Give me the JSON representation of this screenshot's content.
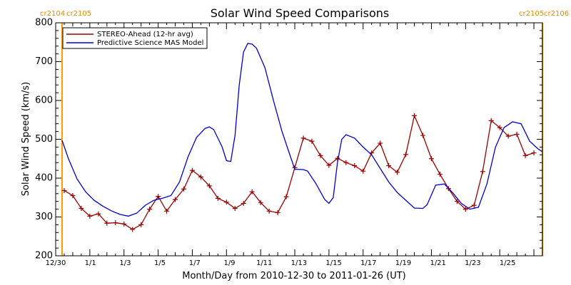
{
  "chart_data": {
    "type": "line",
    "title": "Solar Wind Speed Comparisons",
    "xlabel": "Month/Day from 2010-12-30 to 2011-01-26 (UT)",
    "ylabel": "Solar Wind Speed (km/s)",
    "ylim": [
      200,
      800
    ],
    "xlim": [
      "2010-12-30",
      "2011-01-27 12:00"
    ],
    "x_tick_labels": [
      "12/30",
      "1/1",
      "1/3",
      "1/5",
      "1/7",
      "1/9",
      "1/11",
      "1/13",
      "1/15",
      "1/17",
      "1/19",
      "1/21",
      "1/23",
      "1/25"
    ],
    "y_tick_labels": [
      "200",
      "300",
      "400",
      "500",
      "600",
      "700",
      "800"
    ],
    "carrington_labels": {
      "left": [
        "cr2104",
        "cr2105"
      ],
      "right": [
        "cr2105",
        "cr2106"
      ],
      "boundary_left": "2010-12-30 09:00",
      "boundary_right": "2011-01-27 12:00"
    },
    "legend_position": "top-left",
    "series": [
      {
        "name": "STEREO-Ahead (12-hr avg)",
        "color": "#990000",
        "marker": "plus",
        "points": [
          [
            "2010-12-30 12:00",
            368
          ],
          [
            "2010-12-31 00:00",
            355
          ],
          [
            "2010-12-31 12:00",
            322
          ],
          [
            "2011-01-01 00:00",
            302
          ],
          [
            "2011-01-01 12:00",
            308
          ],
          [
            "2011-01-02 00:00",
            284
          ],
          [
            "2011-01-02 12:00",
            285
          ],
          [
            "2011-01-03 00:00",
            282
          ],
          [
            "2011-01-03 12:00",
            268
          ],
          [
            "2011-01-04 00:00",
            280
          ],
          [
            "2011-01-04 12:00",
            320
          ],
          [
            "2011-01-05 00:00",
            353
          ],
          [
            "2011-01-05 12:00",
            315
          ],
          [
            "2011-01-06 00:00",
            345
          ],
          [
            "2011-01-06 12:00",
            372
          ],
          [
            "2011-01-07 00:00",
            420
          ],
          [
            "2011-01-07 12:00",
            403
          ],
          [
            "2011-01-08 00:00",
            380
          ],
          [
            "2011-01-08 12:00",
            348
          ],
          [
            "2011-01-09 00:00",
            338
          ],
          [
            "2011-01-09 12:00",
            322
          ],
          [
            "2011-01-10 00:00",
            335
          ],
          [
            "2011-01-10 12:00",
            365
          ],
          [
            "2011-01-11 00:00",
            337
          ],
          [
            "2011-01-11 12:00",
            315
          ],
          [
            "2011-01-12 00:00",
            311
          ],
          [
            "2011-01-12 12:00",
            352
          ],
          [
            "2011-01-13 00:00",
            427
          ],
          [
            "2011-01-13 12:00",
            503
          ],
          [
            "2011-01-14 00:00",
            495
          ],
          [
            "2011-01-14 12:00",
            458
          ],
          [
            "2011-01-15 00:00",
            433
          ],
          [
            "2011-01-15 12:00",
            451
          ],
          [
            "2011-01-16 00:00",
            440
          ],
          [
            "2011-01-16 12:00",
            432
          ],
          [
            "2011-01-17 00:00",
            418
          ],
          [
            "2011-01-17 12:00",
            465
          ],
          [
            "2011-01-18 00:00",
            490
          ],
          [
            "2011-01-18 12:00",
            432
          ],
          [
            "2011-01-19 00:00",
            415
          ],
          [
            "2011-01-19 12:00",
            461
          ],
          [
            "2011-01-20 00:00",
            561
          ],
          [
            "2011-01-20 12:00",
            510
          ],
          [
            "2011-01-21 00:00",
            450
          ],
          [
            "2011-01-21 12:00",
            410
          ],
          [
            "2011-01-22 00:00",
            373
          ],
          [
            "2011-01-22 12:00",
            340
          ],
          [
            "2011-01-23 00:00",
            320
          ],
          [
            "2011-01-23 12:00",
            330
          ],
          [
            "2011-01-24 00:00",
            417
          ],
          [
            "2011-01-24 12:00",
            548
          ],
          [
            "2011-01-25 00:00",
            530
          ],
          [
            "2011-01-25 12:00",
            508
          ],
          [
            "2011-01-26 00:00",
            513
          ],
          [
            "2011-01-26 12:00",
            458
          ],
          [
            "2011-01-27 00:00",
            465
          ]
        ]
      },
      {
        "name": "Predictive Science MAS Model",
        "color": "#0000cc",
        "marker": "none",
        "points": [
          [
            "2010-12-30 09:00",
            497
          ],
          [
            "2010-12-30 18:00",
            450
          ],
          [
            "2010-12-31 06:00",
            398
          ],
          [
            "2010-12-31 18:00",
            365
          ],
          [
            "2011-01-01 06:00",
            343
          ],
          [
            "2011-01-01 18:00",
            328
          ],
          [
            "2011-01-02 06:00",
            316
          ],
          [
            "2011-01-02 18:00",
            307
          ],
          [
            "2011-01-03 06:00",
            302
          ],
          [
            "2011-01-03 18:00",
            310
          ],
          [
            "2011-01-04 06:00",
            330
          ],
          [
            "2011-01-04 18:00",
            343
          ],
          [
            "2011-01-05 06:00",
            348
          ],
          [
            "2011-01-05 18:00",
            355
          ],
          [
            "2011-01-06 06:00",
            390
          ],
          [
            "2011-01-06 18:00",
            455
          ],
          [
            "2011-01-07 06:00",
            505
          ],
          [
            "2011-01-07 18:00",
            528
          ],
          [
            "2011-01-08 00:00",
            532
          ],
          [
            "2011-01-08 06:00",
            525
          ],
          [
            "2011-01-08 18:00",
            480
          ],
          [
            "2011-01-09 00:00",
            445
          ],
          [
            "2011-01-09 06:00",
            443
          ],
          [
            "2011-01-09 12:00",
            510
          ],
          [
            "2011-01-09 18:00",
            640
          ],
          [
            "2011-01-10 00:00",
            725
          ],
          [
            "2011-01-10 06:00",
            747
          ],
          [
            "2011-01-10 12:00",
            745
          ],
          [
            "2011-01-10 18:00",
            735
          ],
          [
            "2011-01-11 06:00",
            685
          ],
          [
            "2011-01-11 18:00",
            600
          ],
          [
            "2011-01-12 06:00",
            520
          ],
          [
            "2011-01-12 18:00",
            455
          ],
          [
            "2011-01-13 00:00",
            423
          ],
          [
            "2011-01-13 12:00",
            422
          ],
          [
            "2011-01-13 18:00",
            418
          ],
          [
            "2011-01-14 06:00",
            385
          ],
          [
            "2011-01-14 18:00",
            345
          ],
          [
            "2011-01-15 00:00",
            335
          ],
          [
            "2011-01-15 06:00",
            350
          ],
          [
            "2011-01-15 12:00",
            440
          ],
          [
            "2011-01-15 18:00",
            500
          ],
          [
            "2011-01-16 00:00",
            512
          ],
          [
            "2011-01-16 12:00",
            503
          ],
          [
            "2011-01-17 00:00",
            480
          ],
          [
            "2011-01-17 12:00",
            460
          ],
          [
            "2011-01-18 00:00",
            425
          ],
          [
            "2011-01-18 12:00",
            390
          ],
          [
            "2011-01-19 00:00",
            363
          ],
          [
            "2011-01-19 12:00",
            343
          ],
          [
            "2011-01-20 00:00",
            323
          ],
          [
            "2011-01-20 12:00",
            322
          ],
          [
            "2011-01-20 18:00",
            332
          ],
          [
            "2011-01-21 06:00",
            382
          ],
          [
            "2011-01-21 18:00",
            385
          ],
          [
            "2011-01-22 06:00",
            362
          ],
          [
            "2011-01-22 18:00",
            335
          ],
          [
            "2011-01-23 06:00",
            320
          ],
          [
            "2011-01-23 18:00",
            325
          ],
          [
            "2011-01-24 06:00",
            385
          ],
          [
            "2011-01-24 18:00",
            480
          ],
          [
            "2011-01-25 06:00",
            530
          ],
          [
            "2011-01-25 18:00",
            545
          ],
          [
            "2011-01-26 06:00",
            540
          ],
          [
            "2011-01-26 18:00",
            495
          ],
          [
            "2011-01-27 06:00",
            475
          ],
          [
            "2011-01-27 12:00",
            468
          ]
        ]
      }
    ]
  }
}
